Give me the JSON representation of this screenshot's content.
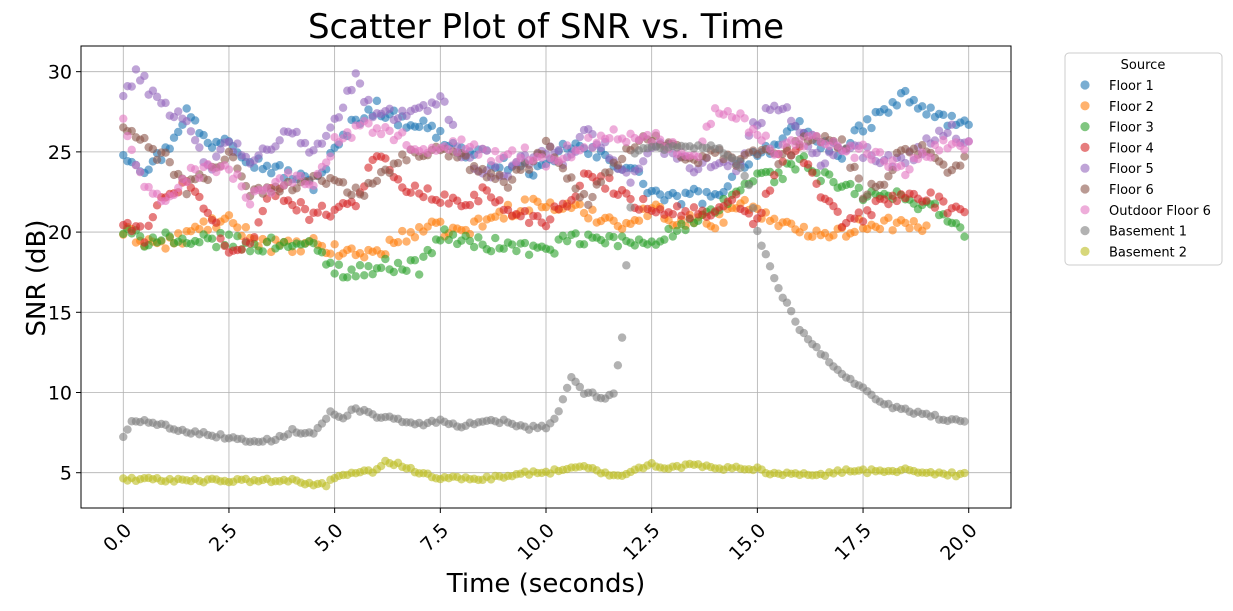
{
  "chart_data": {
    "type": "scatter",
    "title": "Scatter Plot of SNR vs. Time",
    "xlabel": "Time (seconds)",
    "ylabel": "SNR (dB)",
    "xlim": [
      -1.0,
      21.0
    ],
    "ylim": [
      2.8,
      31.6
    ],
    "xticks": [
      0.0,
      2.5,
      5.0,
      7.5,
      10.0,
      12.5,
      15.0,
      17.5,
      20.0
    ],
    "xtick_labels": [
      "0.0",
      "2.5",
      "5.0",
      "7.5",
      "10.0",
      "12.5",
      "15.0",
      "17.5",
      "20.0"
    ],
    "yticks": [
      5,
      10,
      15,
      20,
      25,
      30
    ],
    "ytick_labels": [
      "5",
      "10",
      "15",
      "20",
      "25",
      "30"
    ],
    "xtick_rotation": 45,
    "grid": true,
    "marker_alpha": 0.6,
    "legend": {
      "title": "Source",
      "placement": "outside-upper-right"
    },
    "sample_interval_s": 0.1,
    "series": [
      {
        "name": "Floor 1",
        "color": "#1f77b4",
        "knots_x": [
          0,
          0.5,
          1.0,
          1.5,
          2.0,
          2.5,
          3.0,
          3.5,
          4.0,
          4.5,
          5.0,
          5.5,
          6.0,
          6.5,
          7.0,
          7.5,
          8.0,
          8.5,
          9.0,
          9.5,
          10.0,
          10.5,
          11.0,
          11.5,
          12.0,
          12.5,
          13.0,
          13.5,
          14.0,
          14.5,
          15.0,
          15.5,
          16.0,
          16.5,
          17.0,
          17.5,
          18.0,
          18.5,
          19.0,
          19.5,
          20.0
        ],
        "knots_y": [
          25.0,
          24.0,
          25.0,
          27.5,
          25.5,
          26.0,
          24.5,
          24.0,
          23.5,
          23.0,
          25.0,
          27.0,
          27.8,
          27.0,
          26.8,
          26.0,
          25.0,
          24.8,
          24.2,
          24.0,
          23.8,
          25.5,
          25.0,
          24.5,
          24.0,
          22.5,
          22.0,
          22.3,
          22.0,
          24.0,
          25.0,
          25.5,
          26.5,
          25.5,
          25.0,
          26.5,
          27.5,
          28.5,
          27.5,
          27.0,
          26.5
        ]
      },
      {
        "name": "Floor 2",
        "color": "#ff7f0e",
        "knots_x": [
          0,
          0.5,
          1.0,
          1.5,
          2.0,
          2.5,
          3.0,
          3.5,
          4.0,
          4.5,
          5.0,
          5.5,
          6.0,
          6.5,
          7.0,
          7.5,
          8.0,
          8.5,
          9.0,
          9.5,
          10.0,
          10.5,
          11.0,
          11.5,
          12.0,
          12.5,
          13.0,
          13.5,
          14.0,
          14.5,
          15.0,
          15.5,
          16.0,
          16.5,
          17.0,
          17.5,
          18.0,
          18.5,
          19.0
        ],
        "knots_y": [
          20.0,
          19.5,
          19.2,
          19.8,
          20.5,
          20.6,
          19.8,
          19.2,
          19.0,
          19.2,
          18.8,
          18.7,
          18.7,
          19.5,
          20.2,
          20.2,
          20.0,
          20.6,
          21.2,
          21.7,
          21.7,
          21.5,
          21.2,
          20.8,
          20.5,
          21.5,
          20.8,
          20.8,
          20.5,
          21.8,
          21.5,
          20.3,
          20.2,
          20.1,
          20.0,
          20.5,
          20.6,
          20.4,
          20.0
        ]
      },
      {
        "name": "Floor 3",
        "color": "#2ca02c",
        "knots_x": [
          0,
          0.5,
          1.0,
          1.5,
          2.0,
          2.5,
          3.0,
          3.5,
          4.0,
          4.5,
          5.0,
          5.5,
          6.0,
          6.5,
          7.0,
          7.5,
          8.0,
          8.5,
          9.0,
          9.5,
          10.0,
          10.5,
          11.0,
          11.5,
          12.0,
          12.5,
          13.0,
          13.5,
          14.0,
          14.5,
          15.0,
          15.5,
          16.0,
          16.5,
          17.0,
          17.5,
          18.0,
          18.5,
          19.0,
          19.5,
          19.9
        ],
        "knots_y": [
          20.0,
          19.5,
          19.8,
          19.0,
          19.5,
          19.5,
          19.0,
          19.3,
          19.4,
          19.0,
          17.7,
          17.5,
          17.8,
          18.0,
          17.8,
          19.8,
          19.5,
          19.2,
          19.2,
          19.0,
          18.8,
          19.5,
          19.5,
          19.5,
          19.3,
          19.5,
          20.0,
          20.5,
          21.2,
          22.5,
          23.5,
          23.5,
          24.5,
          23.5,
          22.8,
          22.3,
          22.3,
          22.0,
          21.8,
          21.0,
          19.6
        ]
      },
      {
        "name": "Floor 4",
        "color": "#d62728",
        "knots_x": [
          0,
          0.5,
          1.0,
          1.5,
          2.0,
          2.5,
          3.0,
          3.5,
          4.0,
          4.5,
          5.0,
          5.5,
          6.0,
          6.5,
          7.0,
          7.5,
          8.0,
          8.5,
          9.0,
          9.5,
          10.0,
          10.5,
          11.0,
          11.5,
          12.0,
          12.5,
          13.0,
          13.5,
          14.0,
          14.5,
          15.0,
          15.5,
          16.0,
          16.5,
          17.0,
          17.5,
          18.0,
          18.5,
          19.0,
          19.5,
          19.9
        ],
        "knots_y": [
          20.5,
          19.8,
          22.5,
          22.8,
          21.5,
          18.5,
          19.5,
          22.5,
          22.0,
          21.0,
          21.5,
          22.0,
          25.0,
          23.0,
          22.5,
          22.0,
          21.8,
          22.5,
          21.5,
          21.0,
          20.8,
          22.0,
          23.5,
          23.0,
          22.0,
          21.5,
          21.3,
          21.2,
          21.0,
          22.0,
          20.5,
          24.5,
          25.0,
          22.5,
          20.5,
          21.0,
          22.0,
          22.2,
          22.2,
          21.5,
          20.8
        ]
      },
      {
        "name": "Floor 5",
        "color": "#9467bd",
        "knots_x": [
          0,
          0.3,
          0.6,
          1.0,
          1.5,
          2.0,
          2.5,
          3.0,
          3.5,
          4.0,
          4.5,
          5.0,
          5.5,
          6.0,
          6.5,
          7.0,
          7.5,
          8.0,
          8.5,
          9.0,
          9.5,
          10.0,
          10.5,
          11.0,
          11.5,
          12.0,
          12.5,
          13.0,
          13.5,
          14.0,
          14.5,
          15.0,
          15.5,
          16.0,
          16.5,
          17.0,
          17.5,
          18.0,
          18.5,
          19.0,
          19.5,
          20.0
        ],
        "knots_y": [
          28.5,
          30.0,
          29.0,
          28.0,
          26.5,
          24.0,
          25.5,
          24.5,
          25.0,
          26.5,
          25.0,
          27.0,
          29.5,
          27.0,
          27.5,
          27.5,
          28.5,
          25.0,
          24.0,
          23.5,
          24.5,
          25.0,
          24.5,
          26.5,
          25.0,
          23.0,
          25.5,
          25.0,
          24.0,
          24.5,
          24.0,
          27.0,
          28.0,
          26.5,
          24.5,
          25.5,
          25.0,
          24.5,
          24.5,
          25.5,
          26.5,
          25.5
        ]
      },
      {
        "name": "Floor 6",
        "color": "#8c564b",
        "knots_x": [
          0,
          0.5,
          1.0,
          1.5,
          2.0,
          2.5,
          3.0,
          3.5,
          4.0,
          4.5,
          5.0,
          5.5,
          6.0,
          6.5,
          7.0,
          7.5,
          8.0,
          8.5,
          9.0,
          9.5,
          10.0,
          10.5,
          11.0,
          11.5,
          12.0,
          12.5,
          13.0,
          13.5,
          14.0,
          14.5,
          15.0,
          15.5,
          16.0,
          16.5,
          17.0,
          17.5,
          18.0,
          18.5,
          19.0,
          19.5,
          19.9
        ],
        "knots_y": [
          26.5,
          25.5,
          24.5,
          22.8,
          23.5,
          25.0,
          22.5,
          22.5,
          23.0,
          23.5,
          23.0,
          22.5,
          23.0,
          24.5,
          25.0,
          25.0,
          24.5,
          24.0,
          23.0,
          24.0,
          25.5,
          23.5,
          22.0,
          24.0,
          25.0,
          26.0,
          25.5,
          24.5,
          25.0,
          24.0,
          25.0,
          24.5,
          25.5,
          26.0,
          25.5,
          22.5,
          23.0,
          25.5,
          25.0,
          24.0,
          24.5
        ]
      },
      {
        "name": "Outdoor Floor 6",
        "color": "#e377c2",
        "knots_x": [
          0,
          0.5,
          1.0,
          1.5,
          2.0,
          2.5,
          3.0,
          3.5,
          4.0,
          4.5,
          5.0,
          5.5,
          6.0,
          6.5,
          7.0,
          7.5,
          8.0,
          8.5,
          9.0,
          9.5,
          10.0,
          10.5,
          11.0,
          11.5,
          12.0,
          12.5,
          13.0,
          13.5,
          14.0,
          14.5,
          15.0,
          15.5,
          16.0,
          16.5,
          17.0,
          17.5,
          18.0,
          18.5,
          19.0,
          19.5,
          20.0
        ],
        "knots_y": [
          27.0,
          22.5,
          22.0,
          23.5,
          24.0,
          24.0,
          22.0,
          22.5,
          23.5,
          23.0,
          25.5,
          26.5,
          26.5,
          26.0,
          25.0,
          25.0,
          25.5,
          25.0,
          24.5,
          25.0,
          24.5,
          25.0,
          25.5,
          26.0,
          26.0,
          26.0,
          25.5,
          24.5,
          27.5,
          27.5,
          26.0,
          25.0,
          25.5,
          26.0,
          25.0,
          25.0,
          24.5,
          24.0,
          25.0,
          25.5,
          25.5
        ]
      },
      {
        "name": "Basement 1",
        "color": "#7f7f7f",
        "knots_x": [
          0,
          0.2,
          0.5,
          1.0,
          1.5,
          2.0,
          2.5,
          3.0,
          3.5,
          4.0,
          4.5,
          4.7,
          4.9,
          5.2,
          5.5,
          6.0,
          6.5,
          7.0,
          7.5,
          8.0,
          8.5,
          9.0,
          9.5,
          10.0,
          10.3,
          10.6,
          10.9,
          11.4,
          11.6,
          11.8,
          11.9,
          12.1,
          12.4,
          12.7,
          13.0,
          13.5,
          14.0,
          14.5,
          14.8,
          15.0,
          15.2,
          15.5,
          16.0,
          16.5,
          17.0,
          17.5,
          18.0,
          18.5,
          19.0,
          19.5,
          19.9
        ],
        "knots_y": [
          7.2,
          8.3,
          8.2,
          7.9,
          7.6,
          7.4,
          7.2,
          7.0,
          7.0,
          7.6,
          7.5,
          8.0,
          8.8,
          8.5,
          9.0,
          8.5,
          8.3,
          8.0,
          8.2,
          7.8,
          8.3,
          8.2,
          7.8,
          7.8,
          8.8,
          11.0,
          10.0,
          9.7,
          10.0,
          13.5,
          18.0,
          25.0,
          25.2,
          25.2,
          25.3,
          25.3,
          25.3,
          24.5,
          23.0,
          20.0,
          18.5,
          16.5,
          14.0,
          12.5,
          11.2,
          10.2,
          9.3,
          8.9,
          8.6,
          8.3,
          8.2
        ]
      },
      {
        "name": "Basement 2",
        "color": "#bcbd22",
        "knots_x": [
          0,
          0.5,
          1.0,
          1.5,
          2.0,
          2.5,
          3.0,
          3.5,
          4.0,
          4.5,
          4.8,
          5.0,
          5.5,
          6.0,
          6.2,
          6.5,
          7.0,
          7.5,
          8.0,
          8.5,
          9.0,
          9.5,
          10.0,
          10.5,
          11.0,
          11.5,
          12.0,
          12.5,
          13.0,
          13.5,
          14.0,
          14.5,
          15.0,
          15.5,
          16.0,
          16.5,
          17.0,
          17.5,
          18.0,
          18.5,
          19.0,
          19.5,
          19.9
        ],
        "knots_y": [
          4.6,
          4.6,
          4.5,
          4.6,
          4.5,
          4.5,
          4.5,
          4.5,
          4.5,
          4.3,
          4.2,
          4.7,
          5.0,
          5.1,
          5.7,
          5.5,
          5.0,
          4.7,
          4.6,
          4.6,
          4.8,
          5.0,
          5.0,
          5.3,
          5.3,
          4.8,
          5.0,
          5.5,
          5.3,
          5.5,
          5.3,
          5.3,
          5.2,
          4.9,
          4.9,
          4.8,
          5.1,
          5.1,
          5.1,
          5.2,
          5.0,
          4.9,
          4.9
        ]
      }
    ]
  }
}
